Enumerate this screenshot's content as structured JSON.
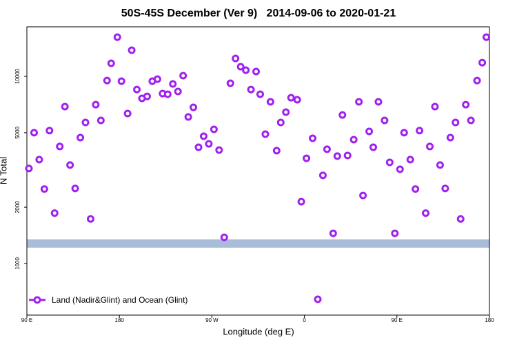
{
  "chart_data": {
    "type": "scatter",
    "title": "50S-45S December (Ver 9)   2014-09-06 to 2020-01-21",
    "x_label": "Longitude (deg E)",
    "y_label": "N Total",
    "log_scale_y": true,
    "grid": false,
    "legend_position": "lower left",
    "xlim": [
      90,
      540
    ],
    "ylim": [
      530,
      18400
    ],
    "xticks": [
      {
        "value": 90,
        "label": "90 E"
      },
      180,
      {
        "value": 270,
        "label": "90 W"
      },
      {
        "value": 360,
        "label": "0"
      },
      {
        "value": 450,
        "label": "90 E"
      },
      {
        "value": 540,
        "label": "180"
      }
    ],
    "yticks": [
      1000,
      2000,
      5000,
      10000
    ],
    "x": [
      92,
      97,
      102,
      107,
      112,
      117,
      122,
      127,
      132,
      137,
      142,
      147,
      152,
      157,
      162,
      168,
      172,
      178,
      182,
      188,
      192,
      197,
      202,
      207,
      212,
      217,
      222,
      227,
      232,
      237,
      242,
      247,
      252,
      257,
      262,
      267,
      272,
      277,
      282,
      288,
      293,
      298,
      303,
      308,
      313,
      317,
      322,
      327,
      333,
      337,
      342,
      347,
      353,
      357,
      362,
      368,
      373,
      378,
      382,
      388,
      392,
      397,
      402,
      408,
      413,
      417,
      423,
      427,
      432,
      438,
      443,
      448,
      453,
      457,
      463,
      468,
      472,
      478,
      482,
      487,
      492,
      497,
      502,
      507,
      512,
      517,
      522,
      528,
      533,
      537
    ],
    "series": [
      {
        "name": "Land (Nadir&Glint) and Ocean (Glint)",
        "color": "#a020f0",
        "values": [
          3220,
          5000,
          3590,
          2500,
          5130,
          1860,
          4220,
          6890,
          3360,
          2520,
          4710,
          5670,
          1730,
          7060,
          5820,
          9500,
          11750,
          16200,
          9430,
          6330,
          13800,
          8510,
          7630,
          7820,
          9430,
          9670,
          8090,
          8030,
          9110,
          8300,
          10090,
          6070,
          6830,
          4180,
          4790,
          4360,
          5210,
          4040,
          1380,
          9190,
          12460,
          11260,
          10790,
          8510,
          10610,
          8030,
          4910,
          7310,
          4010,
          5670,
          6440,
          7690,
          7500,
          2140,
          3650,
          4670,
          644,
          2960,
          4080,
          1450,
          3750,
          6220,
          3780,
          4590,
          7310,
          2310,
          5080,
          4180,
          7310,
          5820,
          3470,
          1450,
          3190,
          5000,
          3590,
          2500,
          5130,
          1860,
          4220,
          6890,
          3360,
          2520,
          4710,
          5670,
          1730,
          7060,
          5820,
          9500,
          11840,
          16200
        ]
      }
    ]
  }
}
